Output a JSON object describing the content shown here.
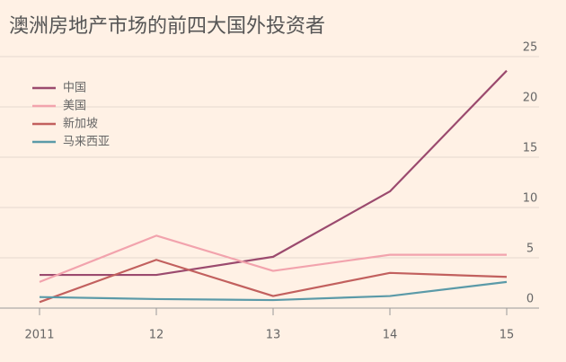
{
  "chart_data": {
    "type": "line",
    "title": "澳洲房地产市场的前四大国外投资者",
    "categories": [
      "2011",
      "12",
      "13",
      "14",
      "15"
    ],
    "series": [
      {
        "name": "中国",
        "color": "#9b4a6e",
        "values": [
          3.3,
          3.3,
          5.1,
          11.6,
          23.6
        ]
      },
      {
        "name": "美国",
        "color": "#f2a3ad",
        "values": [
          2.6,
          7.2,
          3.7,
          5.3,
          5.3
        ]
      },
      {
        "name": "新加坡",
        "color": "#c2605e",
        "values": [
          0.6,
          4.8,
          1.2,
          3.5,
          3.1
        ]
      },
      {
        "name": "马来西亚",
        "color": "#5b9aa8",
        "values": [
          1.1,
          0.9,
          0.8,
          1.2,
          2.6
        ]
      }
    ],
    "ylim": [
      0,
      25
    ],
    "yticks": [
      0,
      5,
      10,
      15,
      20,
      25
    ],
    "grid": true,
    "legend": "top-left"
  }
}
